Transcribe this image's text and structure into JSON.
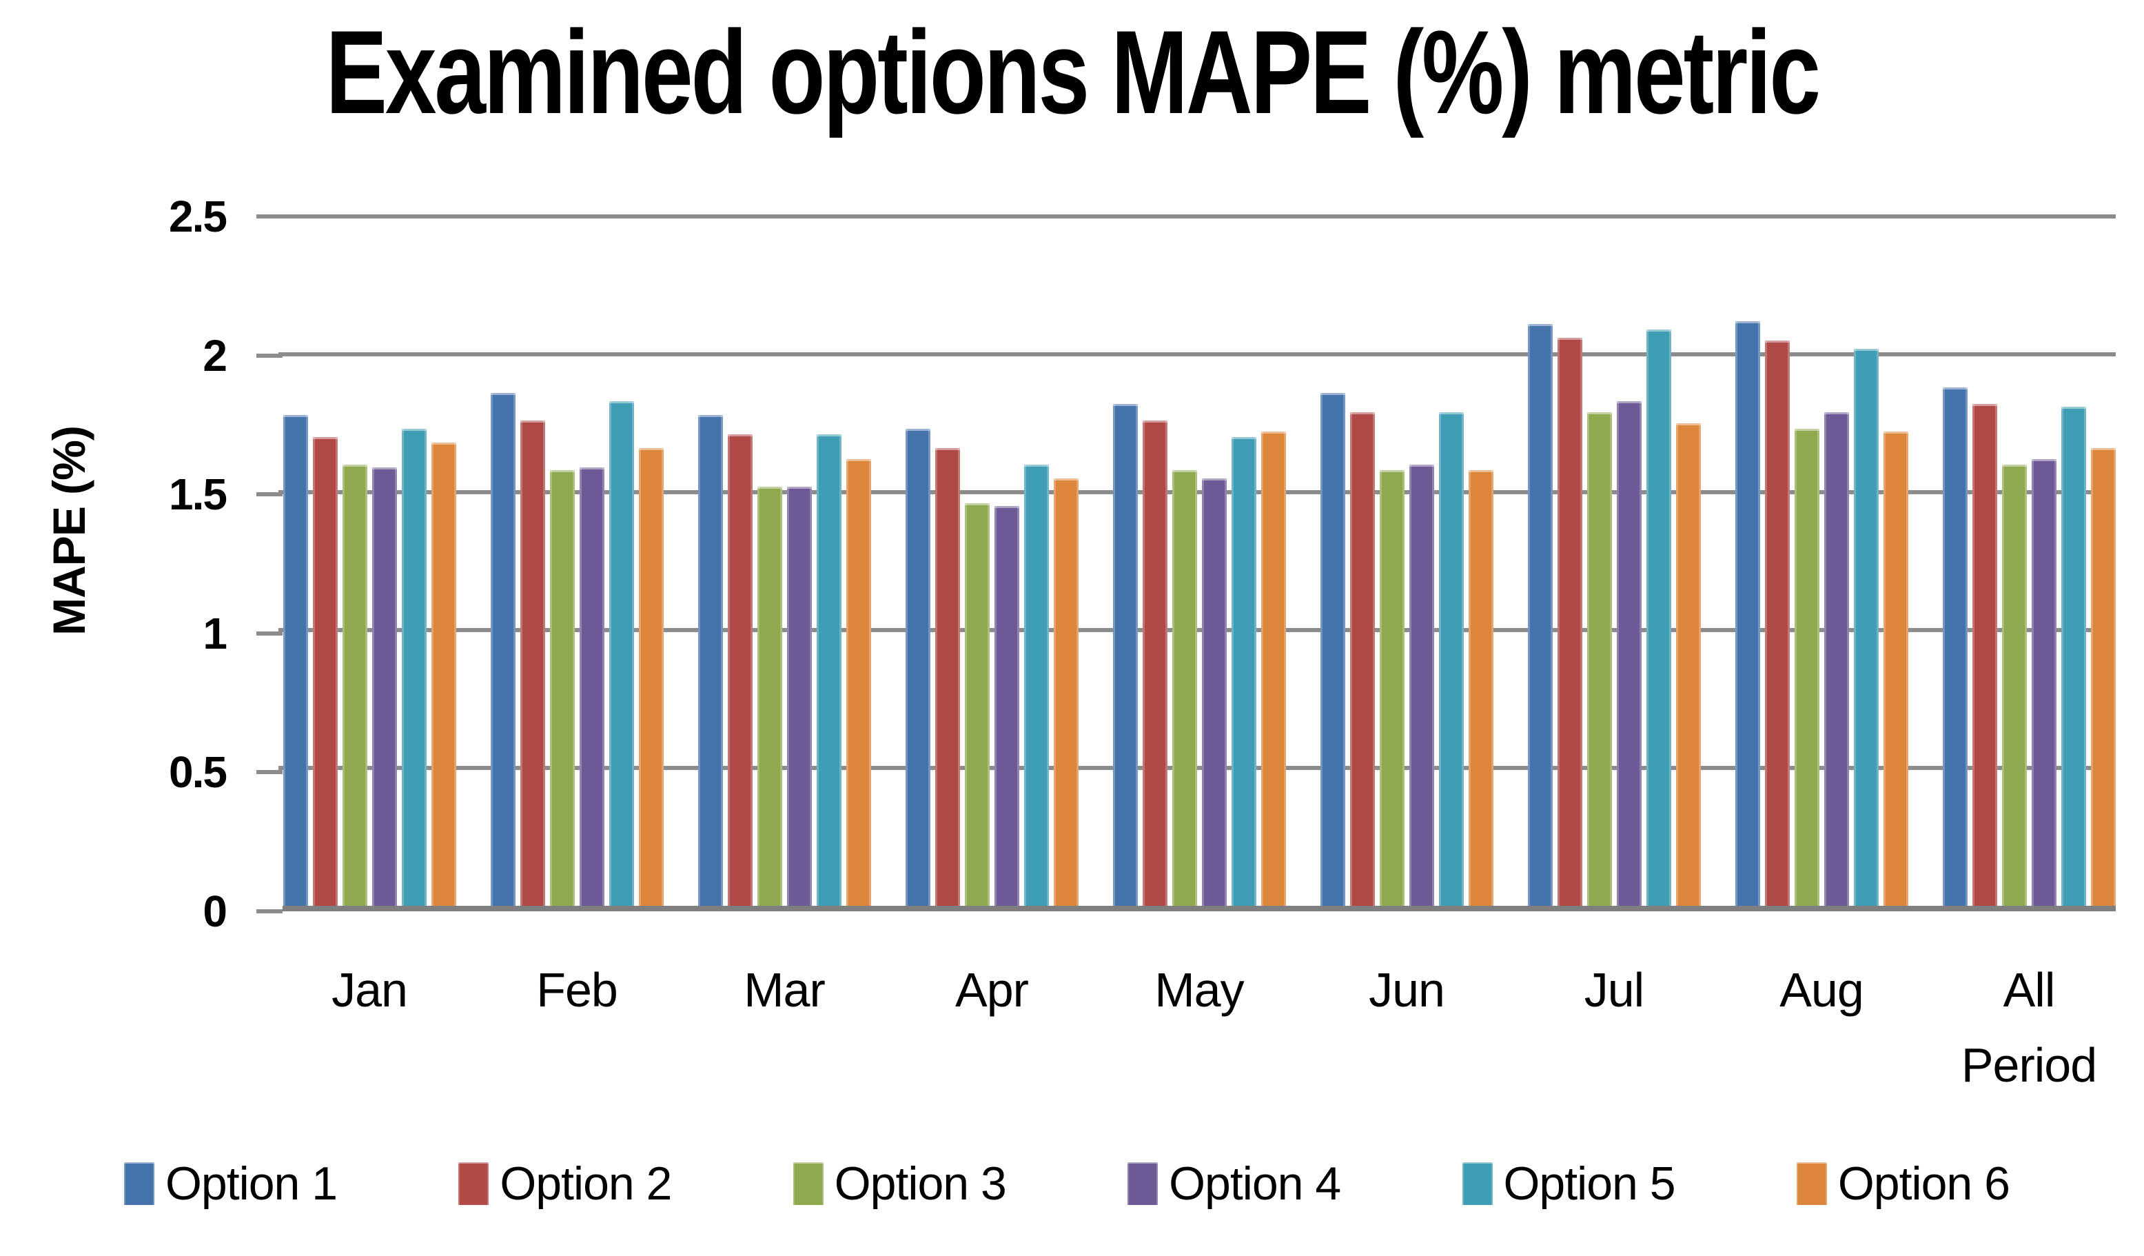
{
  "chart_data": {
    "type": "bar",
    "title": "Examined options MAPE (%) metric",
    "xlabel": "",
    "ylabel": "MAPE (%)",
    "ylim": [
      0,
      2.5
    ],
    "y_ticks": [
      "2.5",
      "2",
      "1.5",
      "1",
      "0.5",
      "0"
    ],
    "grid": true,
    "legend_position": "bottom",
    "categories": [
      "Jan",
      "Feb",
      "Mar",
      "Apr",
      "May",
      "Jun",
      "Jul",
      "Aug",
      "All Period"
    ],
    "series": [
      {
        "name": "Option 1",
        "color": "#4574AD",
        "values": [
          1.78,
          1.86,
          1.78,
          1.73,
          1.82,
          1.86,
          2.11,
          2.12,
          1.88
        ]
      },
      {
        "name": "Option 2",
        "color": "#AF4A47",
        "values": [
          1.7,
          1.76,
          1.71,
          1.66,
          1.76,
          1.79,
          2.06,
          2.05,
          1.82
        ]
      },
      {
        "name": "Option 3",
        "color": "#8FA94F",
        "values": [
          1.6,
          1.58,
          1.52,
          1.46,
          1.58,
          1.58,
          1.79,
          1.73,
          1.6
        ]
      },
      {
        "name": "Option 4",
        "color": "#6E5A97",
        "values": [
          1.59,
          1.59,
          1.52,
          1.45,
          1.55,
          1.6,
          1.83,
          1.79,
          1.62
        ]
      },
      {
        "name": "Option 5",
        "color": "#3F9DB5",
        "values": [
          1.73,
          1.83,
          1.71,
          1.6,
          1.7,
          1.79,
          2.09,
          2.02,
          1.81
        ]
      },
      {
        "name": "Option 6",
        "color": "#DC863B",
        "values": [
          1.68,
          1.66,
          1.62,
          1.55,
          1.72,
          1.58,
          1.75,
          1.72,
          1.66
        ]
      }
    ],
    "colors": {
      "gridline": "#8C8C8C",
      "baseline": "#7F7F7F",
      "text": "#000000",
      "background": "#FFFFFF"
    }
  }
}
